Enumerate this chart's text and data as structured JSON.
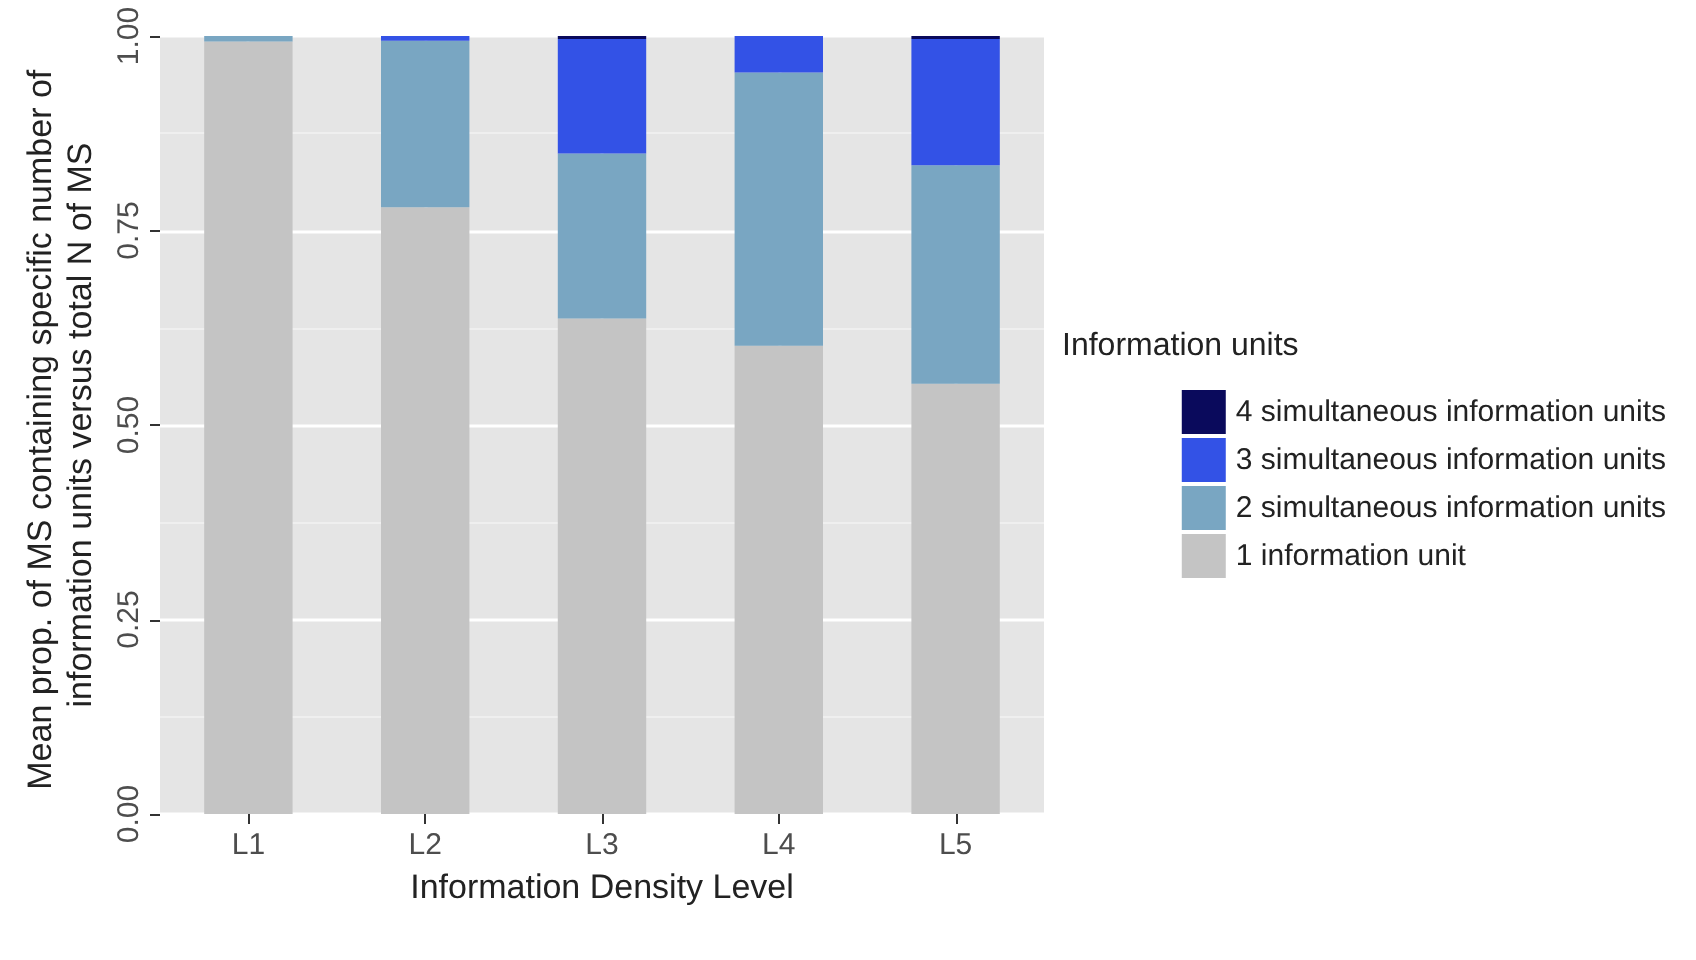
{
  "chart_data": {
    "type": "bar",
    "stacked": true,
    "xlabel": "Information Density Level",
    "ylabel": "Mean prop. of MS containing specific number of information units versus total N of MS",
    "legend_title": "Information units",
    "categories": [
      "L1",
      "L2",
      "L3",
      "L4",
      "L5"
    ],
    "series": [
      {
        "name": "1 information unit",
        "color": "#c4c4c4",
        "values": [
          0.993,
          0.78,
          0.637,
          0.602,
          0.553
        ]
      },
      {
        "name": "2 simultaneous information units",
        "color": "#79a6c2",
        "values": [
          0.007,
          0.214,
          0.212,
          0.351,
          0.281
        ]
      },
      {
        "name": "3 simultaneous information units",
        "color": "#3352e6",
        "values": [
          0,
          0.006,
          0.147,
          0.047,
          0.162
        ]
      },
      {
        "name": "4 simultaneous information units",
        "color": "#0a0a5c",
        "values": [
          0,
          0,
          0.004,
          0,
          0.004
        ]
      }
    ],
    "ylim": [
      0,
      1
    ],
    "yticks": [
      {
        "value": 0,
        "label": "0.00"
      },
      {
        "value": 0.25,
        "label": "0.25"
      },
      {
        "value": 0.5,
        "label": "0.50"
      },
      {
        "value": 0.75,
        "label": "0.75"
      },
      {
        "value": 1,
        "label": "1.00"
      }
    ],
    "grid": true,
    "legend": "right"
  }
}
